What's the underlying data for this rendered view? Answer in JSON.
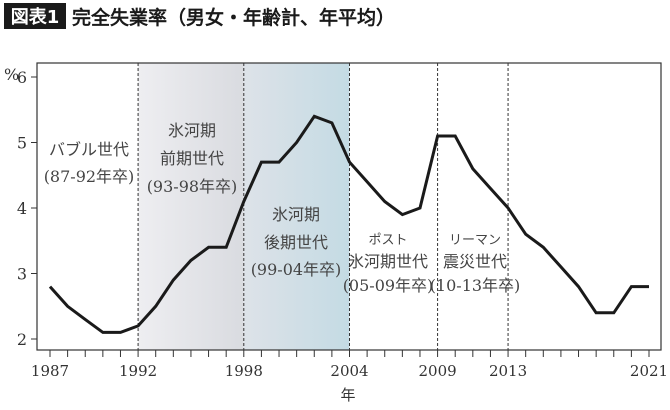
{
  "header": {
    "badge": "図表1",
    "title": "完全失業率（男女・年齢計、年平均）"
  },
  "chart_data": {
    "type": "line",
    "title": "完全失業率（男女・年齢計、年平均）",
    "xlabel": "年",
    "ylabel": "%",
    "xlim": [
      1987,
      2021
    ],
    "ylim": [
      1.8,
      6.2
    ],
    "yticks": [
      2,
      3,
      4,
      5,
      6
    ],
    "xtick_labels": [
      "1987",
      "1992",
      "1998",
      "2004",
      "2009",
      "2013",
      "2021"
    ],
    "x": [
      1987,
      1988,
      1989,
      1990,
      1991,
      1992,
      1993,
      1994,
      1995,
      1996,
      1997,
      1998,
      1999,
      2000,
      2001,
      2002,
      2003,
      2004,
      2005,
      2006,
      2007,
      2008,
      2009,
      2010,
      2011,
      2012,
      2013,
      2014,
      2015,
      2016,
      2017,
      2018,
      2019,
      2020,
      2021
    ],
    "series": [
      {
        "values": [
          2.8,
          2.5,
          2.3,
          2.1,
          2.1,
          2.2,
          2.5,
          2.9,
          3.2,
          3.4,
          3.4,
          4.1,
          4.7,
          4.7,
          5.0,
          5.4,
          5.3,
          4.7,
          4.4,
          4.1,
          3.9,
          4.0,
          5.1,
          5.1,
          4.6,
          4.3,
          4.0,
          3.6,
          3.4,
          3.1,
          2.8,
          2.4,
          2.4,
          2.8,
          2.8
        ],
        "color": "#1a1a1a"
      }
    ],
    "dividers": [
      1992,
      1998,
      2004,
      2009,
      2013
    ],
    "shaded_regions": [
      {
        "from": 1992,
        "to": 1998,
        "color": "#d9dbe0"
      },
      {
        "from": 1998,
        "to": 2004,
        "color": "#c4dbe4"
      }
    ],
    "annotations": [
      {
        "lines": [
          "バブル世代",
          "(87-92年卒)"
        ]
      },
      {
        "lines": [
          "氷河期",
          "前期世代",
          "(93-98年卒)"
        ]
      },
      {
        "lines": [
          "氷河期",
          "後期世代",
          "(99-04年卒)"
        ]
      },
      {
        "lines": [
          "ポスト",
          "氷河期世代",
          "(05-09年卒)"
        ]
      },
      {
        "lines": [
          "リーマン",
          "震災世代",
          "(10-13年卒)"
        ]
      }
    ],
    "grid": false,
    "legend": "none"
  }
}
